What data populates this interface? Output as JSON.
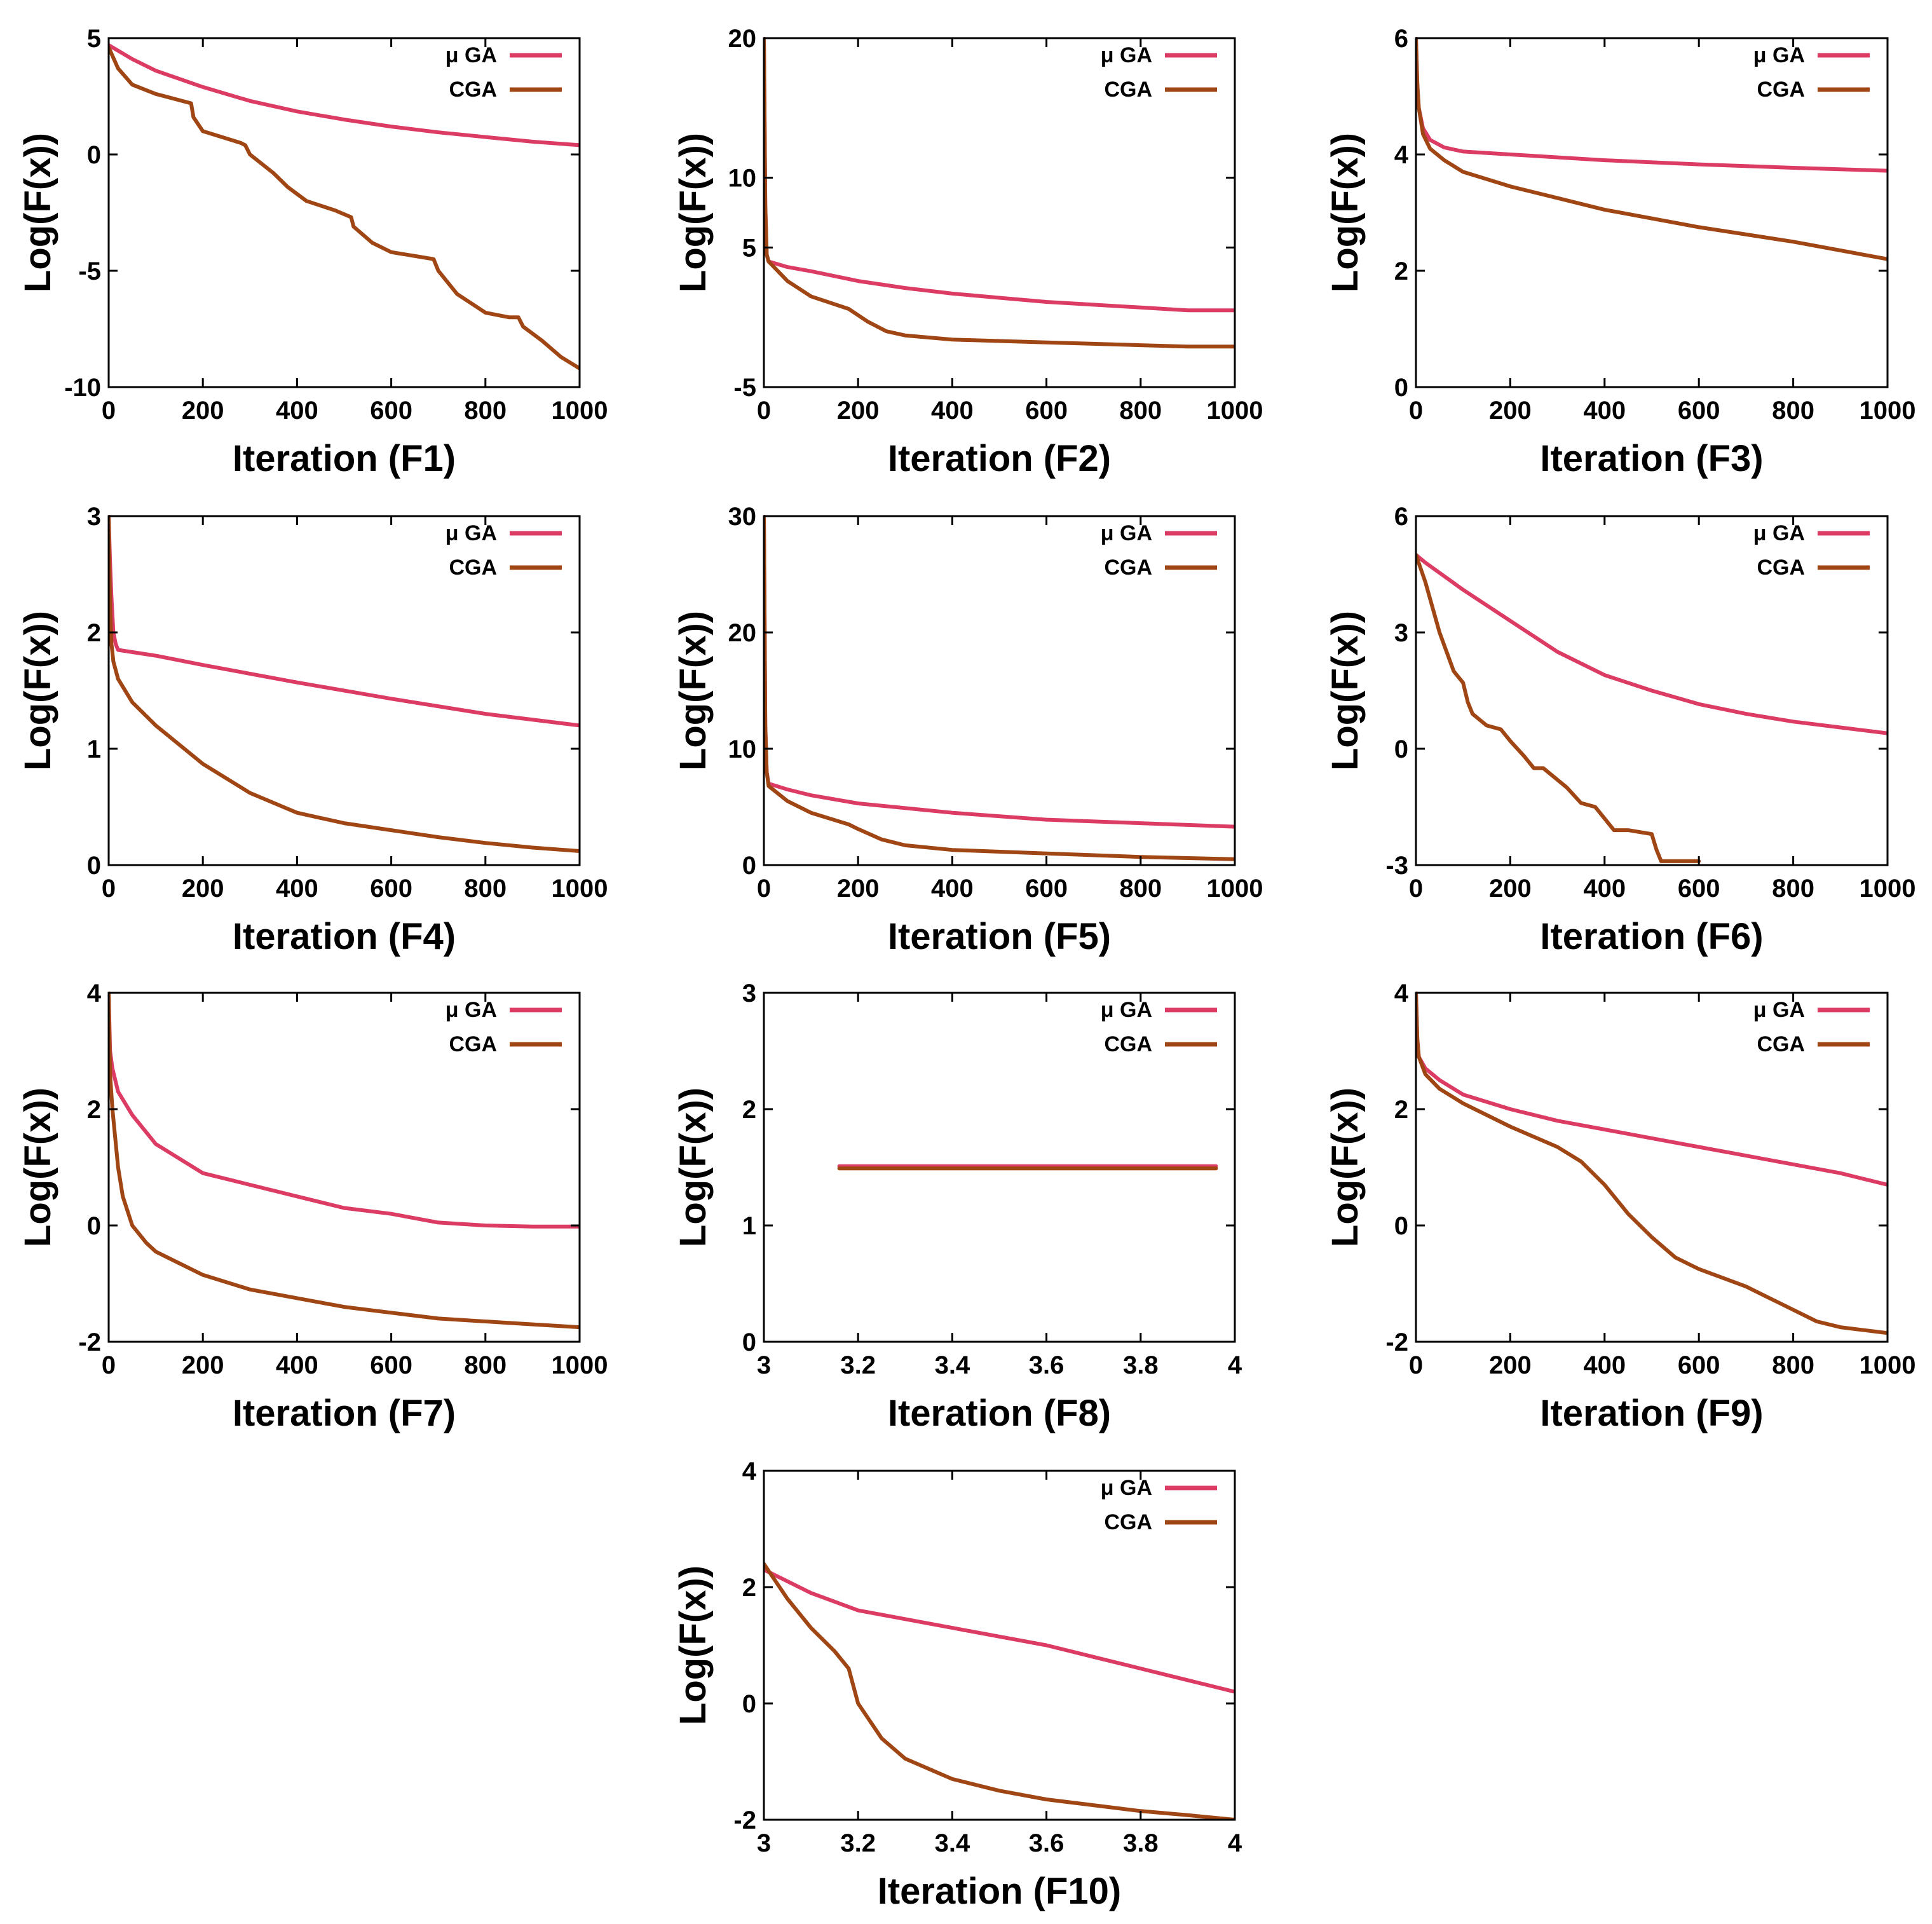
{
  "colors": {
    "mu_ga": "#dc3c64",
    "cga": "#a04614",
    "axis": "#000000",
    "background": "#ffffff"
  },
  "chart_data": [
    {
      "type": "line",
      "id": "F1",
      "xlabel": "Iteration (F1)",
      "ylabel": "Log(F(x))",
      "xlim": [
        0,
        1000
      ],
      "ylim": [
        -10,
        5
      ],
      "xticks": [
        0,
        200,
        400,
        600,
        800,
        1000
      ],
      "xtick_labels": [
        "0",
        "200",
        "400",
        "600",
        "800",
        "1000"
      ],
      "yticks": [
        -10,
        -5,
        0,
        5
      ],
      "ytick_labels": [
        "-10",
        "-5",
        "0",
        "5"
      ],
      "legend": "top-right",
      "series": [
        {
          "name": "μ GA",
          "x": [
            0,
            50,
            100,
            200,
            300,
            400,
            500,
            600,
            700,
            800,
            900,
            1000
          ],
          "y": [
            4.7,
            4.1,
            3.6,
            2.9,
            2.3,
            1.85,
            1.5,
            1.2,
            0.95,
            0.75,
            0.55,
            0.4
          ]
        },
        {
          "name": "CGA",
          "x": [
            0,
            20,
            50,
            100,
            175,
            180,
            200,
            280,
            290,
            300,
            350,
            380,
            420,
            480,
            515,
            520,
            560,
            600,
            660,
            690,
            700,
            740,
            800,
            850,
            870,
            880,
            920,
            960,
            1000
          ],
          "y": [
            4.6,
            3.7,
            3.0,
            2.6,
            2.2,
            1.6,
            1.0,
            0.5,
            0.4,
            0.0,
            -0.8,
            -1.4,
            -2.0,
            -2.4,
            -2.7,
            -3.1,
            -3.8,
            -4.2,
            -4.4,
            -4.5,
            -5.0,
            -6.0,
            -6.8,
            -7.0,
            -7.0,
            -7.4,
            -8.0,
            -8.7,
            -9.2
          ]
        }
      ]
    },
    {
      "type": "line",
      "id": "F2",
      "xlabel": "Iteration (F2)",
      "ylabel": "Log(F(x))",
      "xlim": [
        0,
        1000
      ],
      "ylim": [
        -5,
        20
      ],
      "xticks": [
        0,
        200,
        400,
        600,
        800,
        1000
      ],
      "xtick_labels": [
        "0",
        "200",
        "400",
        "600",
        "800",
        "1000"
      ],
      "yticks": [
        -5,
        5,
        10,
        20
      ],
      "ytick_labels": [
        "-5",
        "5",
        "10",
        "20"
      ],
      "legend": "top-right",
      "series": [
        {
          "name": "μ GA",
          "x": [
            0,
            3,
            6,
            10,
            50,
            100,
            200,
            300,
            400,
            500,
            600,
            700,
            800,
            900,
            1000
          ],
          "y": [
            20,
            8,
            4.5,
            4.0,
            3.6,
            3.3,
            2.6,
            2.1,
            1.7,
            1.4,
            1.1,
            0.9,
            0.7,
            0.5,
            0.5
          ]
        },
        {
          "name": "CGA",
          "x": [
            0,
            3,
            6,
            10,
            50,
            100,
            180,
            220,
            260,
            300,
            400,
            500,
            600,
            700,
            800,
            900,
            1000
          ],
          "y": [
            20,
            8,
            4.5,
            4.0,
            2.6,
            1.5,
            0.6,
            -0.3,
            -1.0,
            -1.3,
            -1.6,
            -1.7,
            -1.8,
            -1.9,
            -2.0,
            -2.1,
            -2.1
          ]
        }
      ]
    },
    {
      "type": "line",
      "id": "F3",
      "xlabel": "Iteration (F3)",
      "ylabel": "Log(F(x))",
      "xlim": [
        0,
        1000
      ],
      "ylim": [
        0,
        6
      ],
      "xticks": [
        0,
        200,
        400,
        600,
        800,
        1000
      ],
      "xtick_labels": [
        "0",
        "200",
        "400",
        "600",
        "800",
        "1000"
      ],
      "yticks": [
        0,
        2,
        4,
        6
      ],
      "ytick_labels": [
        "0",
        "2",
        "4",
        "6"
      ],
      "legend": "top-right",
      "series": [
        {
          "name": "μ GA",
          "x": [
            0,
            3,
            6,
            15,
            30,
            60,
            100,
            200,
            400,
            600,
            800,
            1000
          ],
          "y": [
            6.0,
            5.2,
            4.8,
            4.45,
            4.25,
            4.12,
            4.05,
            4.0,
            3.9,
            3.83,
            3.77,
            3.72
          ]
        },
        {
          "name": "CGA",
          "x": [
            0,
            3,
            6,
            15,
            30,
            60,
            100,
            200,
            300,
            400,
            600,
            800,
            1000
          ],
          "y": [
            6.0,
            5.2,
            4.8,
            4.35,
            4.1,
            3.9,
            3.7,
            3.45,
            3.25,
            3.05,
            2.75,
            2.5,
            2.2
          ]
        }
      ]
    },
    {
      "type": "line",
      "id": "F4",
      "xlabel": "Iteration (F4)",
      "ylabel": "Log(F(x))",
      "xlim": [
        0,
        1000
      ],
      "ylim": [
        0,
        3
      ],
      "xticks": [
        0,
        200,
        400,
        600,
        800,
        1000
      ],
      "xtick_labels": [
        "0",
        "200",
        "400",
        "600",
        "800",
        "1000"
      ],
      "yticks": [
        0,
        1,
        2,
        3
      ],
      "ytick_labels": [
        "0",
        "1",
        "2",
        "3"
      ],
      "legend": "top-right",
      "series": [
        {
          "name": "μ GA",
          "x": [
            0,
            3,
            6,
            10,
            15,
            20,
            100,
            200,
            400,
            600,
            800,
            1000
          ],
          "y": [
            3.0,
            2.6,
            2.3,
            2.0,
            1.9,
            1.85,
            1.8,
            1.72,
            1.57,
            1.43,
            1.3,
            1.2
          ]
        },
        {
          "name": "CGA",
          "x": [
            0,
            3,
            6,
            10,
            20,
            50,
            100,
            200,
            300,
            400,
            500,
            600,
            700,
            800,
            900,
            1000
          ],
          "y": [
            3.0,
            2.2,
            1.9,
            1.75,
            1.6,
            1.4,
            1.2,
            0.87,
            0.62,
            0.45,
            0.36,
            0.3,
            0.24,
            0.19,
            0.15,
            0.12
          ]
        }
      ]
    },
    {
      "type": "line",
      "id": "F5",
      "xlabel": "Iteration (F5)",
      "ylabel": "Log(F(x))",
      "xlim": [
        0,
        1000
      ],
      "ylim": [
        0,
        30
      ],
      "xticks": [
        0,
        200,
        400,
        600,
        800,
        1000
      ],
      "xtick_labels": [
        "0",
        "200",
        "400",
        "600",
        "800",
        "1000"
      ],
      "yticks": [
        0,
        10,
        20,
        30
      ],
      "ytick_labels": [
        "0",
        "10",
        "20",
        "30"
      ],
      "legend": "top-right",
      "series": [
        {
          "name": "μ GA",
          "x": [
            0,
            3,
            6,
            10,
            50,
            100,
            200,
            400,
            600,
            800,
            1000
          ],
          "y": [
            30,
            12,
            8,
            7.0,
            6.5,
            6.0,
            5.3,
            4.5,
            3.9,
            3.6,
            3.3
          ]
        },
        {
          "name": "CGA",
          "x": [
            0,
            3,
            6,
            10,
            50,
            100,
            180,
            200,
            250,
            300,
            400,
            600,
            800,
            1000
          ],
          "y": [
            30,
            12,
            8,
            6.8,
            5.5,
            4.5,
            3.5,
            3.1,
            2.2,
            1.7,
            1.3,
            1.0,
            0.7,
            0.5
          ]
        }
      ]
    },
    {
      "type": "line",
      "id": "F6",
      "xlabel": "Iteration (F6)",
      "ylabel": "Log(F(x))",
      "xlim": [
        0,
        1000
      ],
      "ylim": [
        -3,
        6
      ],
      "xticks": [
        0,
        200,
        400,
        600,
        800,
        1000
      ],
      "xtick_labels": [
        "0",
        "200",
        "400",
        "600",
        "800",
        "1000"
      ],
      "yticks": [
        -3,
        0,
        3,
        6
      ],
      "ytick_labels": [
        "-3",
        "0",
        "3",
        "6"
      ],
      "legend": "top-right",
      "series": [
        {
          "name": "μ GA",
          "x": [
            0,
            20,
            100,
            200,
            300,
            400,
            500,
            600,
            700,
            800,
            900,
            1000
          ],
          "y": [
            5.0,
            4.8,
            4.1,
            3.3,
            2.5,
            1.9,
            1.5,
            1.15,
            0.9,
            0.7,
            0.55,
            0.4
          ]
        },
        {
          "name": "CGA",
          "x": [
            0,
            20,
            50,
            80,
            100,
            110,
            120,
            150,
            180,
            200,
            230,
            250,
            270,
            300,
            320,
            350,
            380,
            400,
            420,
            450,
            500,
            510,
            520,
            550,
            600
          ],
          "y": [
            5.0,
            4.3,
            3.0,
            2.0,
            1.7,
            1.2,
            0.9,
            0.6,
            0.5,
            0.2,
            -0.2,
            -0.5,
            -0.5,
            -0.8,
            -1.0,
            -1.4,
            -1.5,
            -1.8,
            -2.1,
            -2.1,
            -2.2,
            -2.6,
            -2.9,
            -2.9,
            -2.9
          ]
        }
      ]
    },
    {
      "type": "line",
      "id": "F7",
      "xlabel": "Iteration (F7)",
      "ylabel": "Log(F(x))",
      "xlim": [
        0,
        1000
      ],
      "ylim": [
        -2,
        4
      ],
      "xticks": [
        0,
        200,
        400,
        600,
        800,
        1000
      ],
      "xtick_labels": [
        "0",
        "200",
        "400",
        "600",
        "800",
        "1000"
      ],
      "yticks": [
        -2,
        0,
        2,
        4
      ],
      "ytick_labels": [
        "-2",
        "0",
        "2",
        "4"
      ],
      "legend": "top-right",
      "series": [
        {
          "name": "μ GA",
          "x": [
            0,
            3,
            8,
            20,
            50,
            100,
            200,
            300,
            400,
            500,
            600,
            700,
            800,
            900,
            1000
          ],
          "y": [
            4.0,
            3.0,
            2.7,
            2.3,
            1.9,
            1.4,
            0.9,
            0.7,
            0.5,
            0.3,
            0.2,
            0.05,
            0.0,
            -0.02,
            -0.02
          ]
        },
        {
          "name": "CGA",
          "x": [
            0,
            3,
            8,
            20,
            30,
            50,
            80,
            100,
            200,
            300,
            400,
            500,
            600,
            700,
            800,
            900,
            1000
          ],
          "y": [
            4.0,
            2.6,
            2.0,
            1.0,
            0.5,
            0.0,
            -0.3,
            -0.45,
            -0.85,
            -1.1,
            -1.25,
            -1.4,
            -1.5,
            -1.6,
            -1.65,
            -1.7,
            -1.75
          ]
        }
      ]
    },
    {
      "type": "line",
      "id": "F8",
      "xlabel": "Iteration (F8)",
      "ylabel": "Log(F(x))",
      "xlim": [
        3,
        4
      ],
      "ylim": [
        0,
        3
      ],
      "xticks": [
        3,
        3.2,
        3.4,
        3.6,
        3.8,
        4
      ],
      "xtick_labels": [
        "3",
        "3.2",
        "3.4",
        "3.6",
        "3.8",
        "4"
      ],
      "yticks": [
        0,
        1,
        2,
        3
      ],
      "ytick_labels": [
        "0",
        "1",
        "2",
        "3"
      ],
      "legend": "top-right",
      "series": [
        {
          "name": "μ GA",
          "x": [
            3.16,
            3.96
          ],
          "y": [
            1.51,
            1.51
          ]
        },
        {
          "name": "CGA",
          "x": [
            3.16,
            3.96
          ],
          "y": [
            1.49,
            1.49
          ]
        }
      ]
    },
    {
      "type": "line",
      "id": "F9",
      "xlabel": "Iteration (F9)",
      "ylabel": "Log(F(x))",
      "xlim": [
        0,
        1000
      ],
      "ylim": [
        -2,
        4
      ],
      "xticks": [
        0,
        200,
        400,
        600,
        800,
        1000
      ],
      "xtick_labels": [
        "0",
        "200",
        "400",
        "600",
        "800",
        "1000"
      ],
      "yticks": [
        -2,
        0,
        2,
        4
      ],
      "ytick_labels": [
        "-2",
        "0",
        "2",
        "4"
      ],
      "legend": "top-right",
      "series": [
        {
          "name": "μ GA",
          "x": [
            0,
            3,
            6,
            20,
            50,
            100,
            200,
            300,
            400,
            500,
            600,
            700,
            800,
            900,
            1000
          ],
          "y": [
            4.0,
            3.2,
            2.9,
            2.7,
            2.5,
            2.25,
            2.0,
            1.8,
            1.65,
            1.5,
            1.35,
            1.2,
            1.05,
            0.9,
            0.7
          ]
        },
        {
          "name": "CGA",
          "x": [
            0,
            3,
            6,
            20,
            50,
            100,
            200,
            300,
            350,
            400,
            450,
            500,
            550,
            600,
            650,
            700,
            750,
            800,
            850,
            900,
            950,
            1000
          ],
          "y": [
            4.0,
            3.2,
            2.9,
            2.6,
            2.35,
            2.1,
            1.7,
            1.35,
            1.1,
            0.7,
            0.2,
            -0.2,
            -0.55,
            -0.75,
            -0.9,
            -1.05,
            -1.25,
            -1.45,
            -1.65,
            -1.75,
            -1.8,
            -1.85
          ]
        }
      ]
    },
    {
      "type": "line",
      "id": "F10",
      "xlabel": "Iteration (F10)",
      "ylabel": "Log(F(x))",
      "xlim": [
        3,
        4
      ],
      "ylim": [
        -2,
        4
      ],
      "xticks": [
        3,
        3.2,
        3.4,
        3.6,
        3.8,
        4
      ],
      "xtick_labels": [
        "3",
        "3.2",
        "3.4",
        "3.6",
        "3.8",
        "4"
      ],
      "yticks": [
        -2,
        0,
        2,
        4
      ],
      "ytick_labels": [
        "-2",
        "0",
        "2",
        "4"
      ],
      "legend": "top-right",
      "series": [
        {
          "name": "μ GA",
          "x": [
            3.0,
            3.05,
            3.1,
            3.2,
            3.3,
            3.4,
            3.5,
            3.6,
            3.7,
            3.8,
            3.9,
            4.0
          ],
          "y": [
            2.3,
            2.1,
            1.9,
            1.6,
            1.45,
            1.3,
            1.15,
            1.0,
            0.8,
            0.6,
            0.4,
            0.2
          ]
        },
        {
          "name": "CGA",
          "x": [
            3.0,
            3.05,
            3.1,
            3.15,
            3.18,
            3.2,
            3.25,
            3.3,
            3.4,
            3.5,
            3.6,
            3.7,
            3.8,
            3.9,
            4.0
          ],
          "y": [
            2.4,
            1.8,
            1.3,
            0.9,
            0.6,
            0.0,
            -0.6,
            -0.95,
            -1.3,
            -1.5,
            -1.65,
            -1.75,
            -1.85,
            -1.92,
            -2.0
          ]
        }
      ]
    }
  ]
}
